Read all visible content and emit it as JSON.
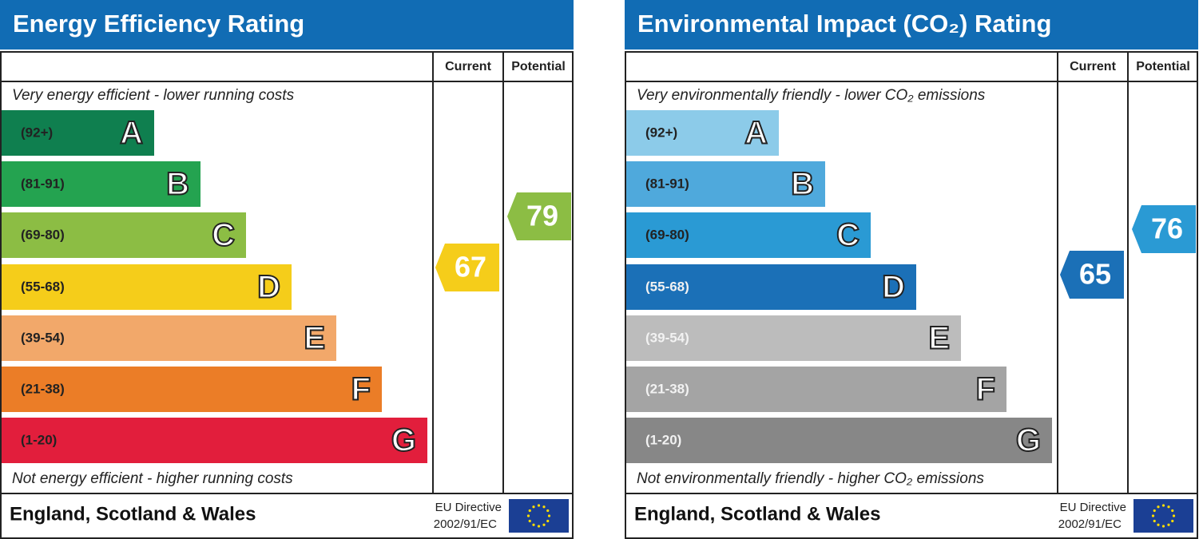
{
  "panels": [
    {
      "title": "Energy Efficiency Rating",
      "header": {
        "current": "Current",
        "potential": "Potential"
      },
      "top_note": "Very energy efficient - lower running costs",
      "bands": [
        {
          "range": "(92+)",
          "letter": "A",
          "color": "#0f7f4f"
        },
        {
          "range": "(81-91)",
          "letter": "B",
          "color": "#24a350"
        },
        {
          "range": "(69-80)",
          "letter": "C",
          "color": "#8cbd44"
        },
        {
          "range": "(55-68)",
          "letter": "D",
          "color": "#f5cd1a"
        },
        {
          "range": "(39-54)",
          "letter": "E",
          "color": "#f2a86a"
        },
        {
          "range": "(21-38)",
          "letter": "F",
          "color": "#eb7d27"
        },
        {
          "range": "(1-20)",
          "letter": "G",
          "color": "#e21e3c"
        }
      ],
      "current": {
        "value": 67,
        "color": "#f5cd1a"
      },
      "potential": {
        "value": 79,
        "color": "#8cbd44"
      },
      "bottom_note": "Not energy efficient - higher running costs",
      "footer": {
        "region": "England, Scotland & Wales",
        "directive_line1": "EU Directive",
        "directive_line2": "2002/91/EC"
      }
    },
    {
      "title": "Environmental Impact (CO₂) Rating",
      "header": {
        "current": "Current",
        "potential": "Potential"
      },
      "top_note": "Very environmentally friendly - lower CO₂ emissions",
      "bands": [
        {
          "range": "(92+)",
          "letter": "A",
          "color": "#8ccbe9"
        },
        {
          "range": "(81-91)",
          "letter": "B",
          "color": "#4fa9dc"
        },
        {
          "range": "(69-80)",
          "letter": "C",
          "color": "#2a9ad4"
        },
        {
          "range": "(55-68)",
          "letter": "D",
          "color": "#1b70b7"
        },
        {
          "range": "(39-54)",
          "letter": "E",
          "color": "#bcbcbc"
        },
        {
          "range": "(21-38)",
          "letter": "F",
          "color": "#a4a4a4"
        },
        {
          "range": "(1-20)",
          "letter": "G",
          "color": "#878787"
        }
      ],
      "current": {
        "value": 65,
        "color": "#1b70b7"
      },
      "potential": {
        "value": 76,
        "color": "#2a9ad4"
      },
      "bottom_note": "Not environmentally friendly - higher CO₂ emissions",
      "footer": {
        "region": "England, Scotland & Wales",
        "directive_line1": "EU Directive",
        "directive_line2": "2002/91/EC"
      }
    }
  ]
}
